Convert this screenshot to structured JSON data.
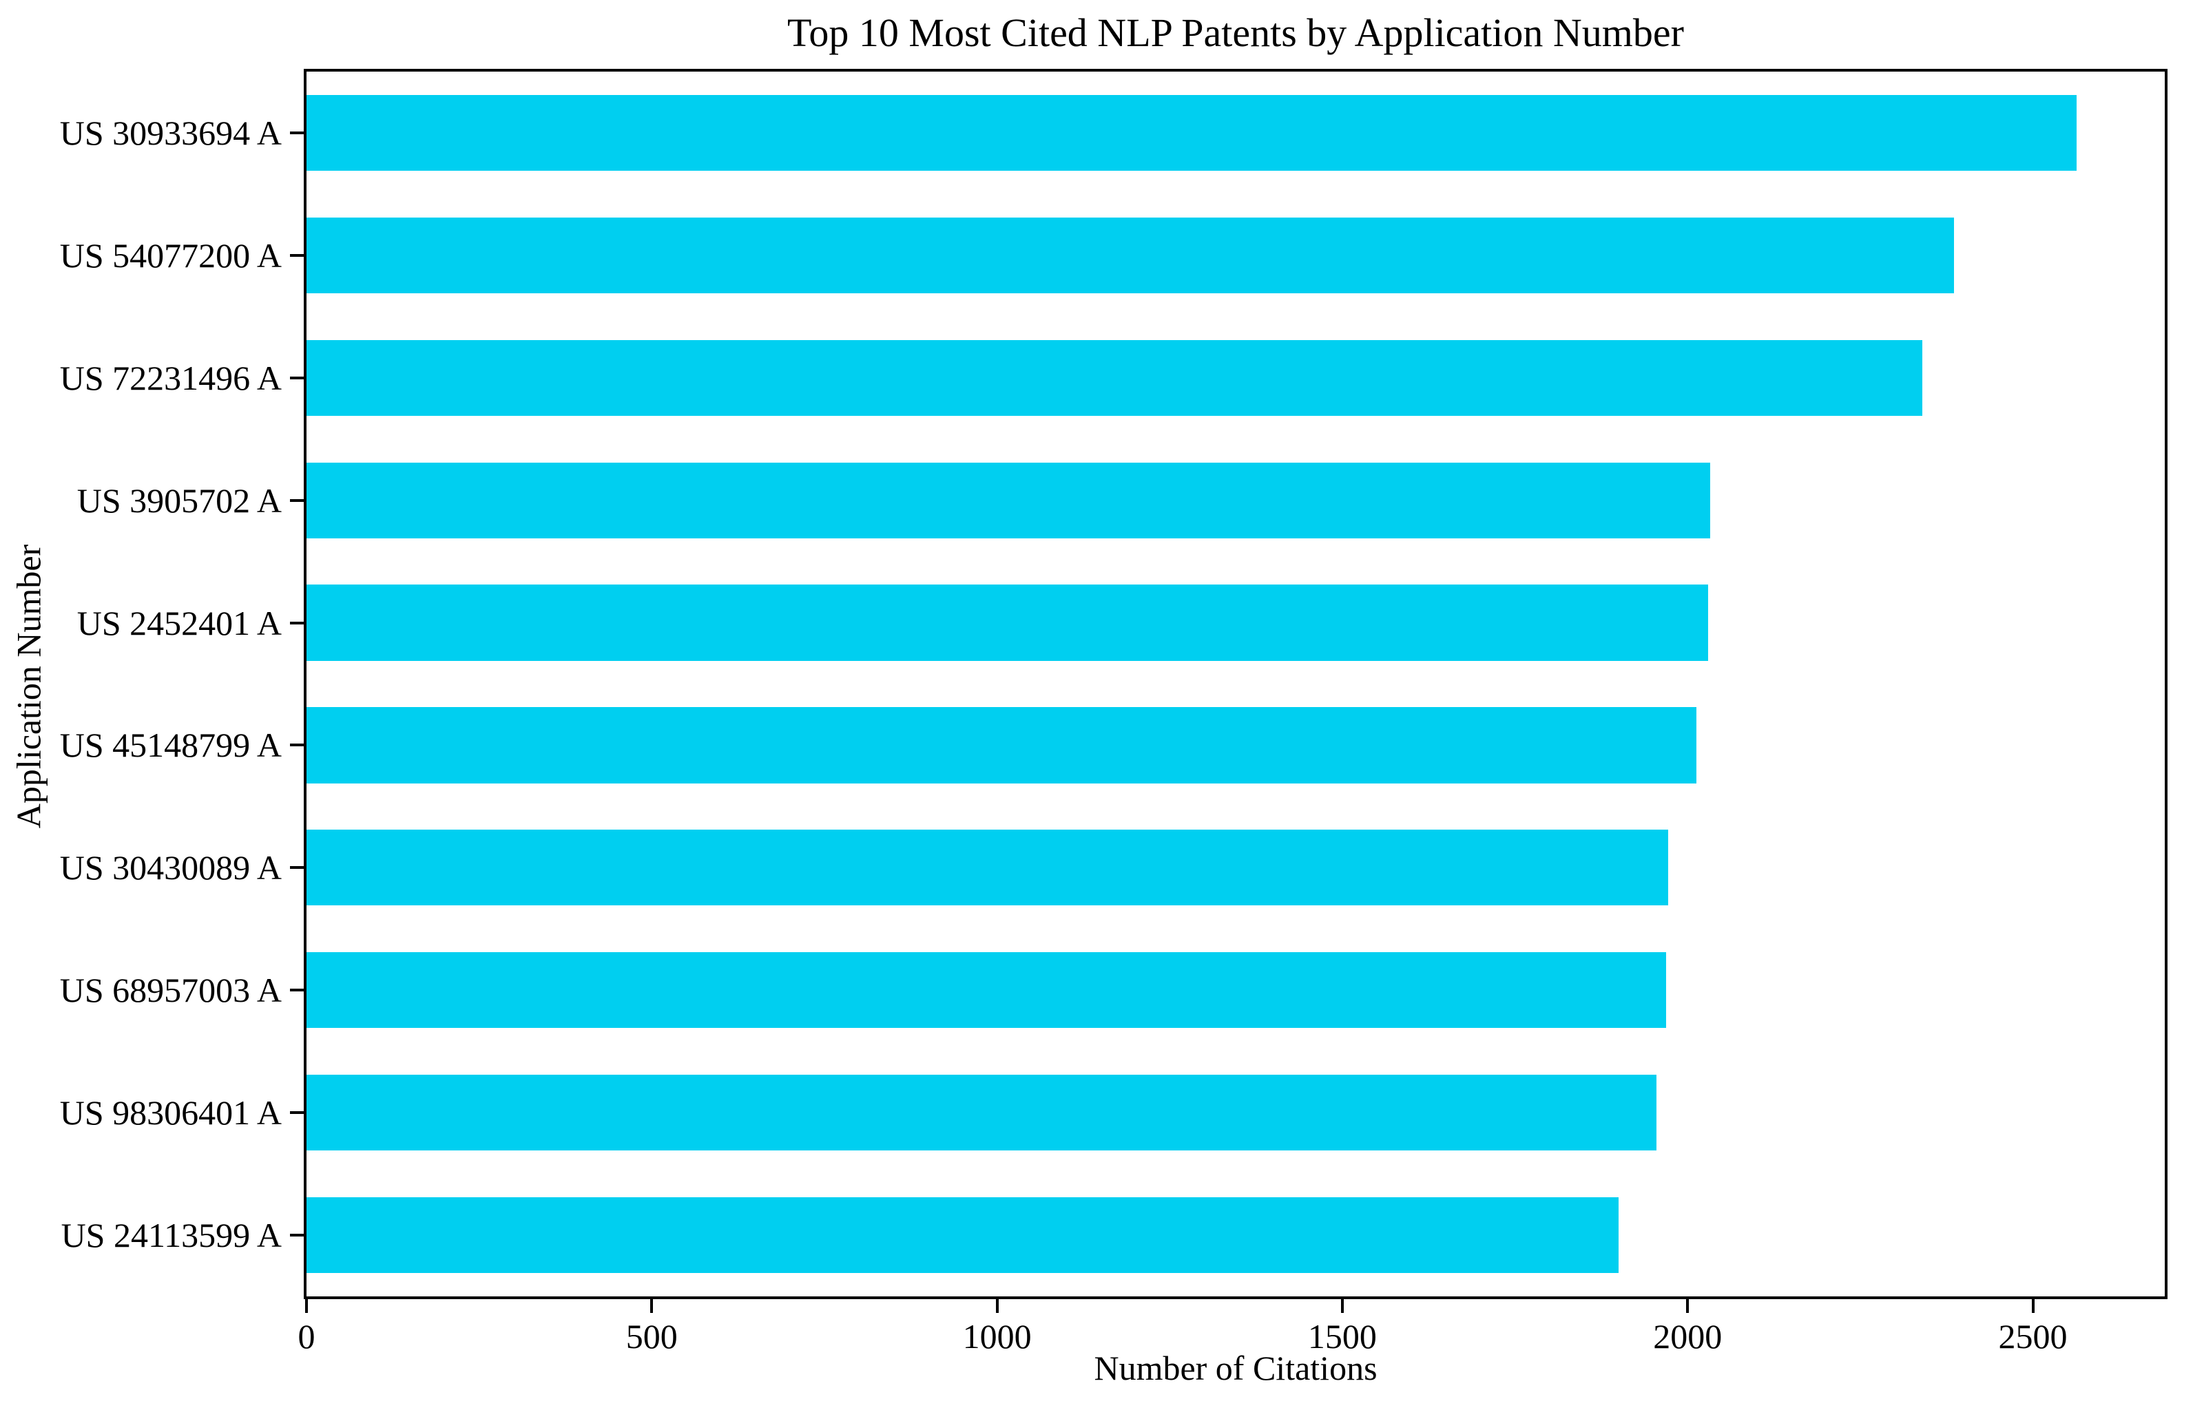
{
  "chart_data": {
    "type": "bar",
    "orientation": "horizontal",
    "title": "Top 10 Most Cited NLP Patents by Application Number",
    "xlabel": "Number of Citations",
    "ylabel": "Application Number",
    "categories": [
      "US 30933694 A",
      "US 54077200 A",
      "US 72231496 A",
      "US 3905702 A",
      "US 2452401 A",
      "US 45148799 A",
      "US 30430089 A",
      "US 68957003 A",
      "US 98306401 A",
      "US 24113599 A"
    ],
    "values": [
      2563,
      2386,
      2340,
      2033,
      2030,
      2013,
      1972,
      1969,
      1955,
      1900
    ],
    "xticks": [
      0,
      500,
      1000,
      1500,
      2000,
      2500
    ],
    "xlim": [
      0,
      2691
    ],
    "bar_color": "#00CFF0",
    "bar_height_fraction": 0.62,
    "grid": false,
    "legend": null
  }
}
